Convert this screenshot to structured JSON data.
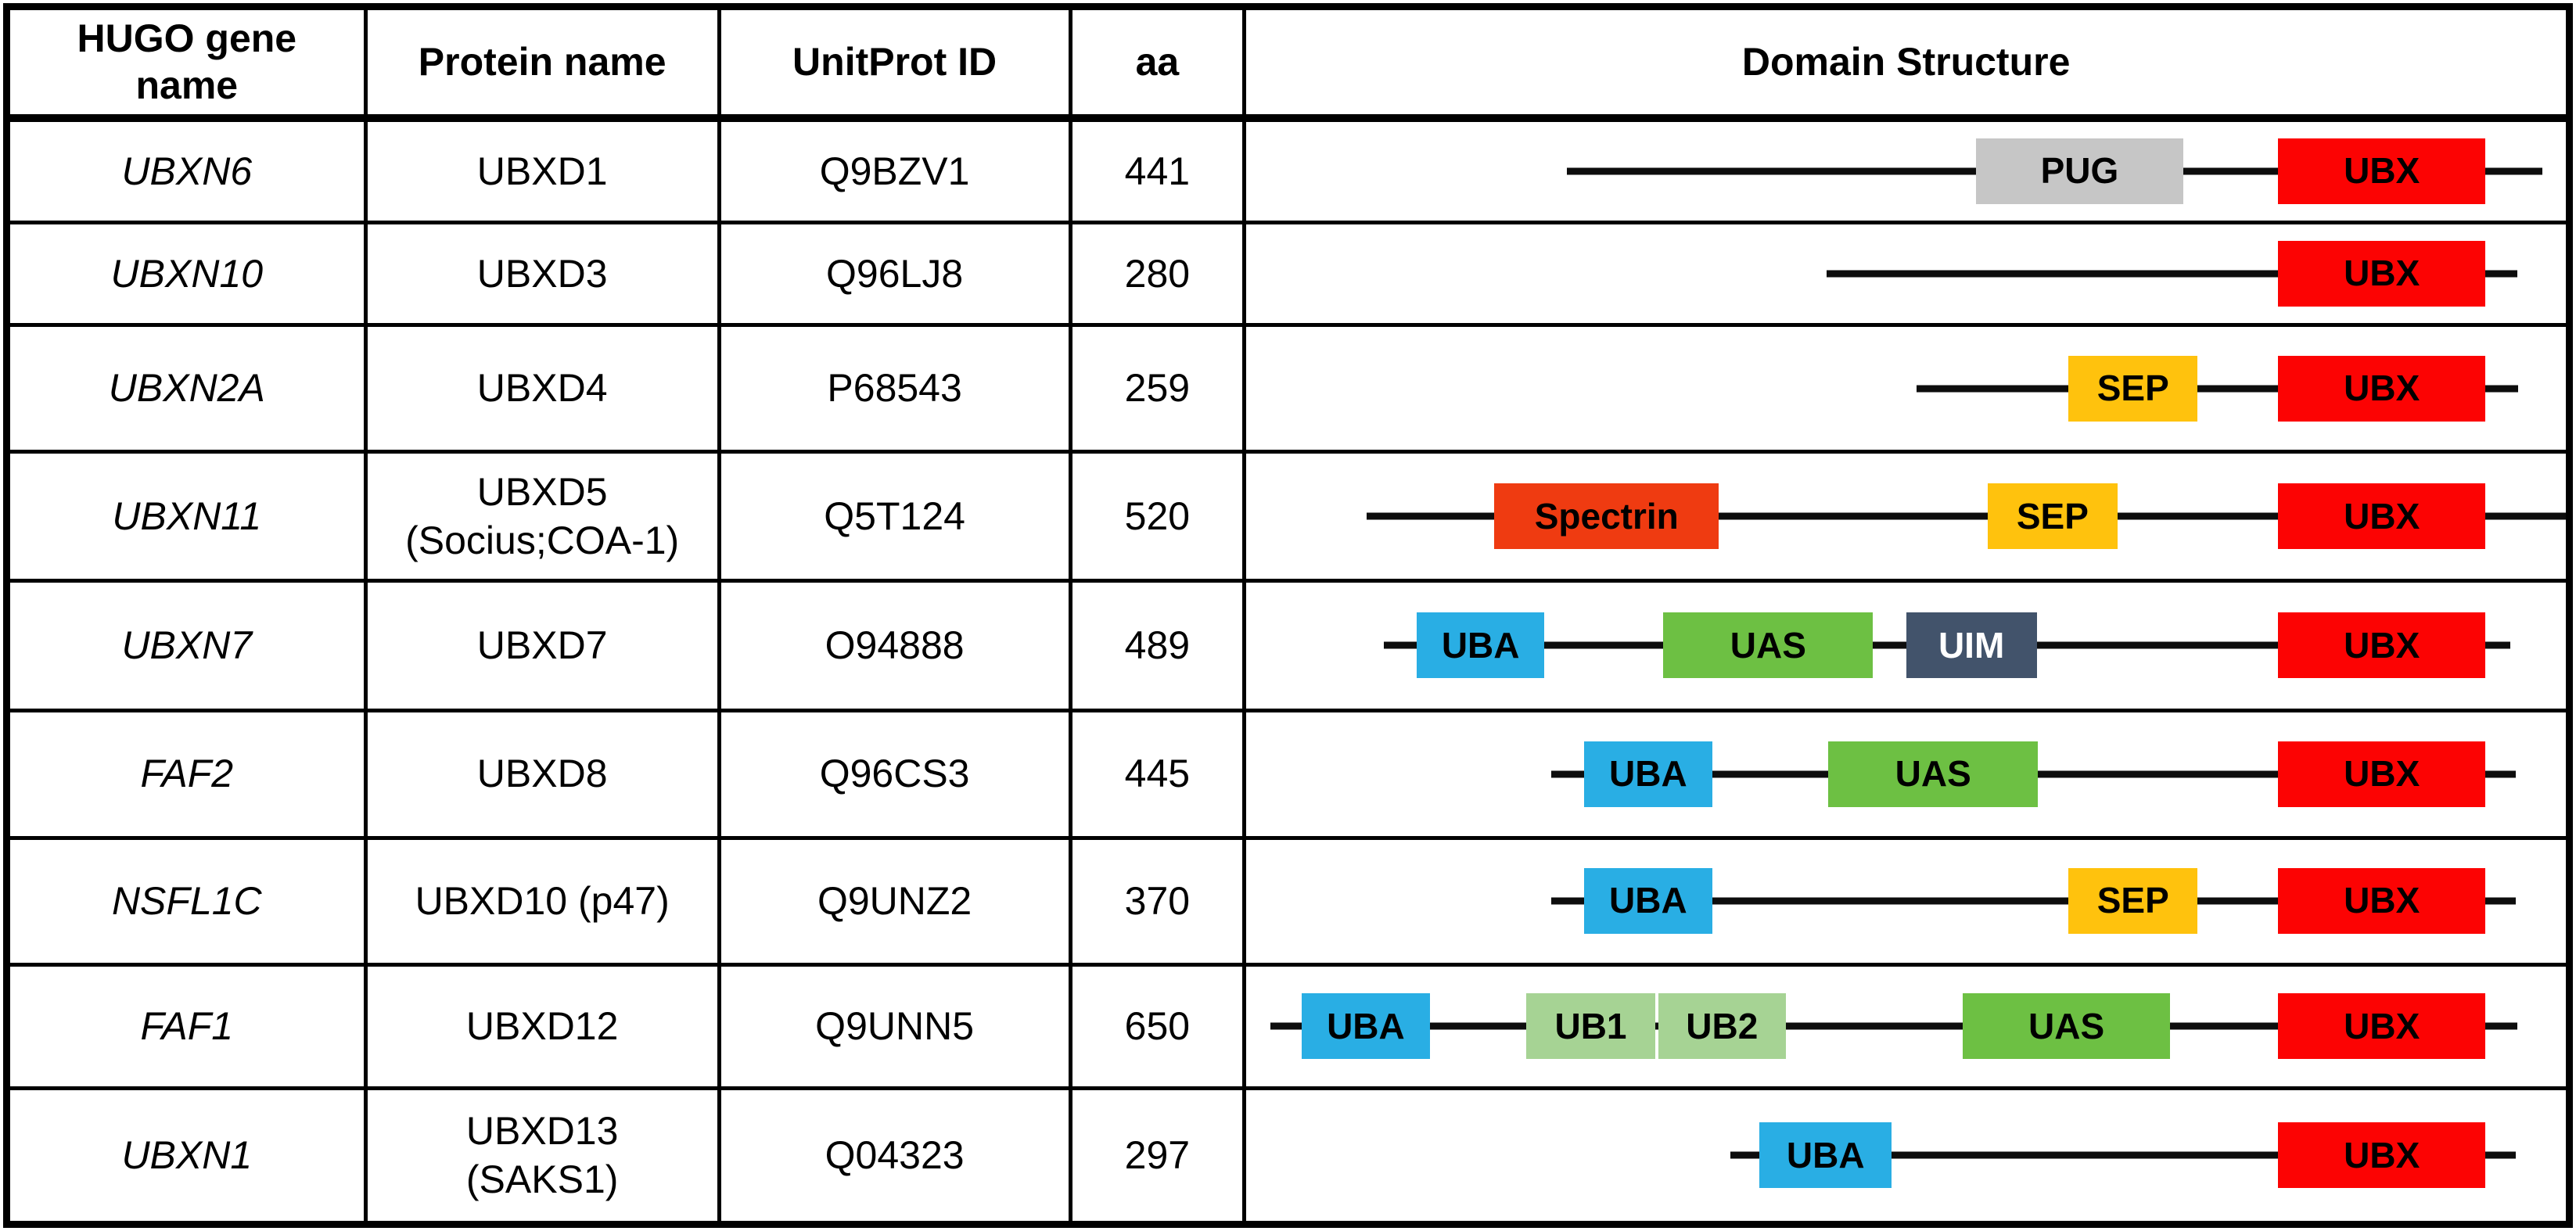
{
  "header": {
    "gene": "HUGO gene\nname",
    "protein": "Protein name",
    "uniprot": "UnitProt ID",
    "aa": "aa",
    "domain_structure": "Domain Structure"
  },
  "palette": {
    "ubx_red": "#FC0303",
    "pug_gray": "#C6C6C6",
    "sep_yellow": "#FFC20D",
    "spectrin_orange_red": "#EF3B11",
    "uba_blue": "#29AEE4",
    "uas_green": "#6DC043",
    "uim_dark_slate": "#42536B",
    "ub_light_green": "#A6D394",
    "backbone_black": "#0D0D0D"
  },
  "rows": [
    {
      "gene": "UBXN6",
      "protein": "UBXD1",
      "uniprot": "Q9BZV1",
      "aa": "441",
      "line": {
        "start": 24.3,
        "end": 98.2
      },
      "domains": [
        {
          "label": "PUG",
          "left": 55.3,
          "width": 15.7,
          "fill": "#C6C6C6",
          "text": "#000000"
        },
        {
          "label": "UBX",
          "left": 78.2,
          "width": 15.7,
          "fill": "#FC0303",
          "text": "#000000"
        }
      ]
    },
    {
      "gene": "UBXN10",
      "protein": "UBXD3",
      "uniprot": "Q96LJ8",
      "aa": "280",
      "line": {
        "start": 44.0,
        "end": 96.3
      },
      "domains": [
        {
          "label": "UBX",
          "left": 78.2,
          "width": 15.7,
          "fill": "#FC0303",
          "text": "#000000"
        }
      ]
    },
    {
      "gene": "UBXN2A",
      "protein": "UBXD4",
      "uniprot": "P68543",
      "aa": "259",
      "line": {
        "start": 50.8,
        "end": 96.4
      },
      "domains": [
        {
          "label": "SEP",
          "left": 62.3,
          "width": 9.8,
          "fill": "#FFC20D",
          "text": "#000000"
        },
        {
          "label": "UBX",
          "left": 78.2,
          "width": 15.7,
          "fill": "#FC0303",
          "text": "#000000"
        }
      ]
    },
    {
      "gene": "UBXN11",
      "protein": "UBXD5\n(Socius;COA-1)",
      "uniprot": "Q5T124",
      "aa": "520",
      "line": {
        "start": 9.1,
        "end": 100
      },
      "domains": [
        {
          "label": "Spectrin",
          "left": 18.8,
          "width": 17.0,
          "fill": "#EF3B11",
          "text": "#000000"
        },
        {
          "label": "SEP",
          "left": 56.2,
          "width": 9.8,
          "fill": "#FFC20D",
          "text": "#000000"
        },
        {
          "label": "UBX",
          "left": 78.2,
          "width": 15.7,
          "fill": "#FC0303",
          "text": "#000000"
        }
      ]
    },
    {
      "gene": "UBXN7",
      "protein": "UBXD7",
      "uniprot": "O94888",
      "aa": "489",
      "line": {
        "start": 10.4,
        "end": 95.8
      },
      "domains": [
        {
          "label": "UBA",
          "left": 12.9,
          "width": 9.7,
          "fill": "#29AEE4",
          "text": "#000000"
        },
        {
          "label": "UAS",
          "left": 31.6,
          "width": 15.9,
          "fill": "#6DC043",
          "text": "#000000"
        },
        {
          "label": "UIM",
          "left": 50.0,
          "width": 9.9,
          "fill": "#42536B",
          "text": "#FFFFFF"
        },
        {
          "label": "UBX",
          "left": 78.2,
          "width": 15.7,
          "fill": "#FC0303",
          "text": "#000000"
        }
      ]
    },
    {
      "gene": "FAF2",
      "protein": "UBXD8",
      "uniprot": "Q96CS3",
      "aa": "445",
      "line": {
        "start": 23.1,
        "end": 96.2
      },
      "domains": [
        {
          "label": "UBA",
          "left": 25.6,
          "width": 9.7,
          "fill": "#29AEE4",
          "text": "#000000"
        },
        {
          "label": "UAS",
          "left": 44.1,
          "width": 15.9,
          "fill": "#6DC043",
          "text": "#000000"
        },
        {
          "label": "UBX",
          "left": 78.2,
          "width": 15.7,
          "fill": "#FC0303",
          "text": "#000000"
        }
      ]
    },
    {
      "gene": "NSFL1C",
      "protein": "UBXD10 (p47)",
      "uniprot": "Q9UNZ2",
      "aa": "370",
      "line": {
        "start": 23.1,
        "end": 96.2
      },
      "domains": [
        {
          "label": "UBA",
          "left": 25.6,
          "width": 9.7,
          "fill": "#29AEE4",
          "text": "#000000"
        },
        {
          "label": "SEP",
          "left": 62.3,
          "width": 9.8,
          "fill": "#FFC20D",
          "text": "#000000"
        },
        {
          "label": "UBX",
          "left": 78.2,
          "width": 15.7,
          "fill": "#FC0303",
          "text": "#000000"
        }
      ]
    },
    {
      "gene": "FAF1",
      "protein": "UBXD12",
      "uniprot": "Q9UNN5",
      "aa": "650",
      "line": {
        "start": 1.8,
        "end": 96.3
      },
      "domains": [
        {
          "label": "UBA",
          "left": 4.2,
          "width": 9.7,
          "fill": "#29AEE4",
          "text": "#000000"
        },
        {
          "label": "UB1",
          "left": 21.2,
          "width": 9.8,
          "fill": "#A6D394",
          "text": "#000000"
        },
        {
          "label": "UB2",
          "left": 31.2,
          "width": 9.7,
          "fill": "#A6D394",
          "text": "#000000"
        },
        {
          "label": "UAS",
          "left": 54.3,
          "width": 15.7,
          "fill": "#6DC043",
          "text": "#000000"
        },
        {
          "label": "UBX",
          "left": 78.2,
          "width": 15.7,
          "fill": "#FC0303",
          "text": "#000000"
        }
      ]
    },
    {
      "gene": "UBXN1",
      "protein": "UBXD13\n(SAKS1)",
      "uniprot": "Q04323",
      "aa": "297",
      "line": {
        "start": 36.7,
        "end": 96.2
      },
      "domains": [
        {
          "label": "UBA",
          "left": 38.9,
          "width": 10.0,
          "fill": "#29AEE4",
          "text": "#000000"
        },
        {
          "label": "UBX",
          "left": 78.2,
          "width": 15.7,
          "fill": "#FC0303",
          "text": "#000000"
        }
      ]
    }
  ]
}
